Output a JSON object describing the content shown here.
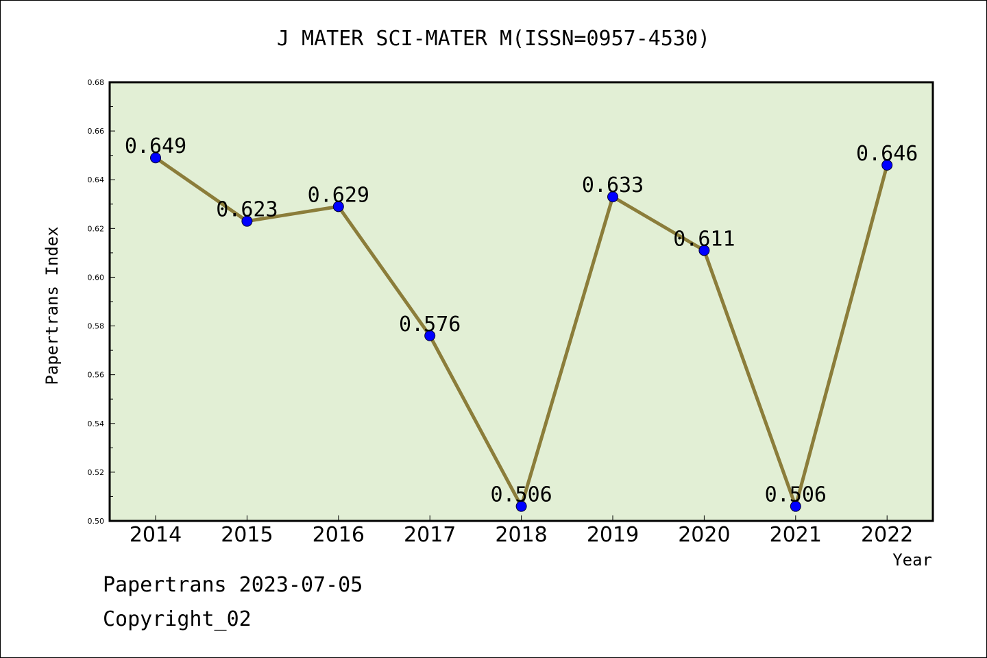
{
  "chart_data": {
    "type": "line",
    "title": "J MATER SCI-MATER M(ISSN=0957-4530)",
    "xlabel": "Year",
    "ylabel": "Papertrans Index",
    "categories": [
      "2014",
      "2015",
      "2016",
      "2017",
      "2018",
      "2019",
      "2020",
      "2021",
      "2022"
    ],
    "series": [
      {
        "values": [
          0.649,
          0.623,
          0.629,
          0.576,
          0.506,
          0.633,
          0.611,
          0.506,
          0.646
        ],
        "labels": [
          "0.649",
          "0.623",
          "0.629",
          "0.576",
          "0.506",
          "0.633",
          "0.611",
          "0.506",
          "0.646"
        ],
        "line_color": "#8b7d3a",
        "marker_color": "#0000ff"
      }
    ],
    "ylim": [
      0.5,
      0.68
    ],
    "yticks": [
      "0.50",
      "0.52",
      "0.54",
      "0.56",
      "0.58",
      "0.60",
      "0.62",
      "0.64",
      "0.66",
      "0.68"
    ],
    "plot_background": "#e2efd5",
    "grid": false
  },
  "footer": {
    "line1": "Papertrans 2023-07-05",
    "line2": "Copyright_02"
  }
}
